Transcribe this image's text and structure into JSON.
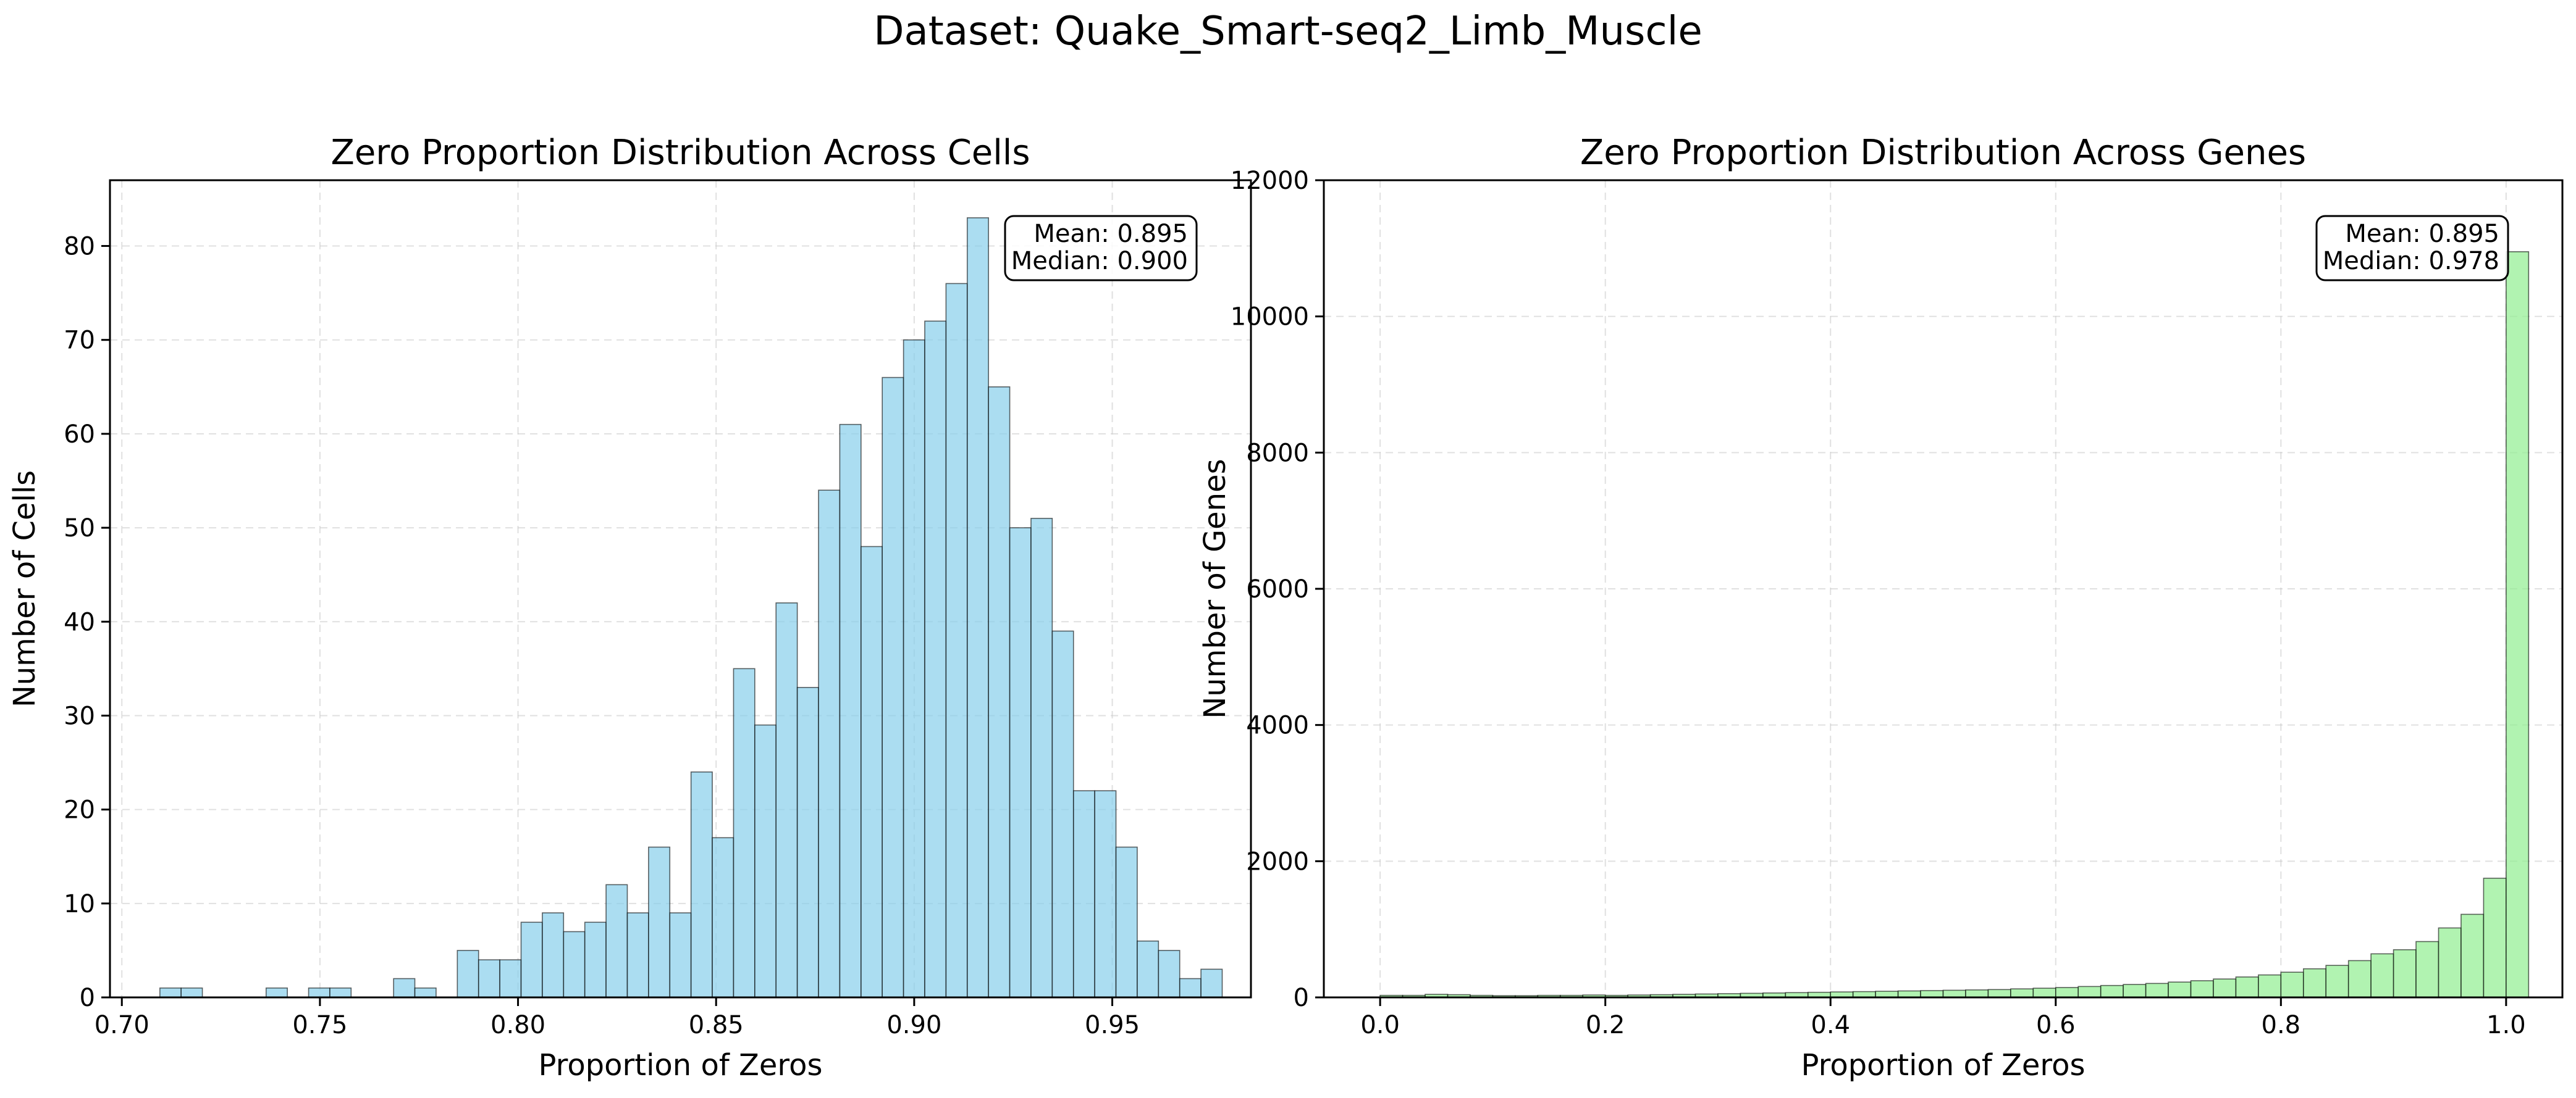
{
  "suptitle": "Dataset: Quake_Smart-seq2_Limb_Muscle",
  "chart_data": [
    {
      "type": "bar",
      "histogram": true,
      "title": "Zero Proportion Distribution Across Cells",
      "xlabel": "Proportion of Zeros",
      "ylabel": "Number of Cells",
      "xlim": [
        0.697,
        0.985
      ],
      "ylim": [
        0,
        87
      ],
      "xticks": [
        0.7,
        0.75,
        0.8,
        0.85,
        0.9,
        0.95
      ],
      "xtick_labels": [
        "0.70",
        "0.75",
        "0.80",
        "0.85",
        "0.90",
        "0.95"
      ],
      "yticks": [
        0,
        10,
        20,
        30,
        40,
        50,
        60,
        70,
        80
      ],
      "ytick_labels": [
        "0",
        "10",
        "20",
        "30",
        "40",
        "50",
        "60",
        "70",
        "80"
      ],
      "grid": true,
      "bar_color": "#87CEEB",
      "bin_start": 0.7096,
      "bin_width": 0.005363,
      "counts": [
        1,
        1,
        0,
        0,
        0,
        1,
        0,
        1,
        1,
        0,
        0,
        2,
        1,
        0,
        5,
        4,
        4,
        8,
        9,
        7,
        8,
        12,
        9,
        16,
        9,
        24,
        17,
        35,
        29,
        42,
        33,
        54,
        61,
        48,
        66,
        70,
        72,
        76,
        83,
        65,
        50,
        51,
        39,
        22,
        22,
        16,
        6,
        5,
        2,
        3
      ],
      "annotation": [
        "Mean: 0.895",
        "Median: 0.900"
      ]
    },
    {
      "type": "bar",
      "histogram": true,
      "title": "Zero Proportion Distribution Across Genes",
      "xlabel": "Proportion of Zeros",
      "ylabel": "Number of Genes",
      "xlim": [
        -0.05,
        1.05
      ],
      "ylim": [
        0,
        12000
      ],
      "xticks": [
        0.0,
        0.2,
        0.4,
        0.6,
        0.8,
        1.0
      ],
      "xtick_labels": [
        "0.0",
        "0.2",
        "0.4",
        "0.6",
        "0.8",
        "1.0"
      ],
      "yticks": [
        0,
        2000,
        4000,
        6000,
        8000,
        10000,
        12000
      ],
      "ytick_labels": [
        "0",
        "2000",
        "4000",
        "6000",
        "8000",
        "10000",
        "12000"
      ],
      "grid": true,
      "bar_color": "#90EE90",
      "bin_start": 0.0,
      "bin_width": 0.02,
      "counts": [
        30,
        30,
        45,
        40,
        30,
        25,
        25,
        30,
        30,
        35,
        30,
        35,
        40,
        45,
        50,
        55,
        60,
        65,
        70,
        75,
        80,
        85,
        90,
        95,
        100,
        105,
        110,
        115,
        125,
        135,
        145,
        160,
        175,
        190,
        205,
        225,
        245,
        270,
        300,
        330,
        370,
        420,
        470,
        540,
        640,
        700,
        820,
        1020,
        1220,
        1750,
        10950
      ],
      "annotation": [
        "Mean: 0.895",
        "Median: 0.978"
      ]
    }
  ]
}
